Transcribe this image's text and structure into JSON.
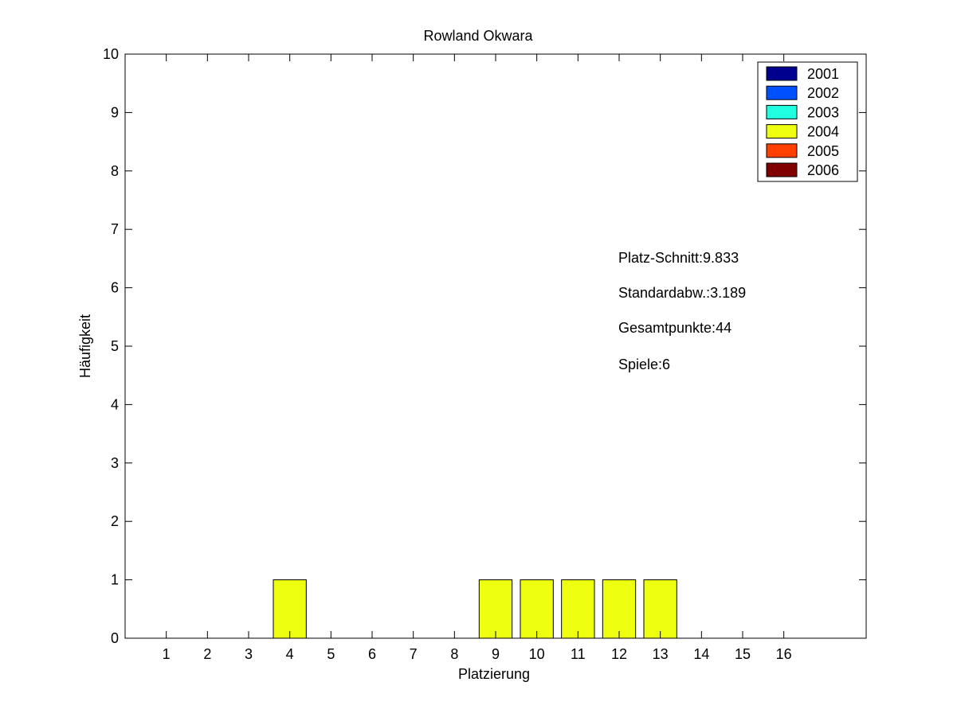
{
  "chart_data": {
    "type": "bar",
    "title": "Rowland Okwara",
    "xlabel": "Platzierung",
    "ylabel": "Häufigkeit",
    "x_ticks": [
      1,
      2,
      3,
      4,
      5,
      6,
      7,
      8,
      9,
      10,
      11,
      12,
      13,
      14,
      15,
      16
    ],
    "xlim": [
      0,
      18
    ],
    "ylim": [
      0,
      10
    ],
    "y_ticks": [
      0,
      1,
      2,
      3,
      4,
      5,
      6,
      7,
      8,
      9,
      10
    ],
    "grid": false,
    "legend_position": "top-right",
    "series": [
      {
        "name": "2001",
        "color": "#00008f",
        "values": []
      },
      {
        "name": "2002",
        "color": "#0050ff",
        "values": []
      },
      {
        "name": "2003",
        "color": "#20ffdf",
        "values": []
      },
      {
        "name": "2004",
        "color": "#efff10",
        "values": [
          {
            "x": 4,
            "y": 1
          },
          {
            "x": 9,
            "y": 1
          },
          {
            "x": 10,
            "y": 1
          },
          {
            "x": 11,
            "y": 1
          },
          {
            "x": 12,
            "y": 1
          },
          {
            "x": 13,
            "y": 1
          }
        ]
      },
      {
        "name": "2005",
        "color": "#ff4000",
        "values": []
      },
      {
        "name": "2006",
        "color": "#800000",
        "values": []
      }
    ],
    "annotations": [
      "Platz-Schnitt:9.833",
      "Standardabw.:3.189",
      "Gesamtpunkte:44",
      "Spiele:6"
    ]
  }
}
